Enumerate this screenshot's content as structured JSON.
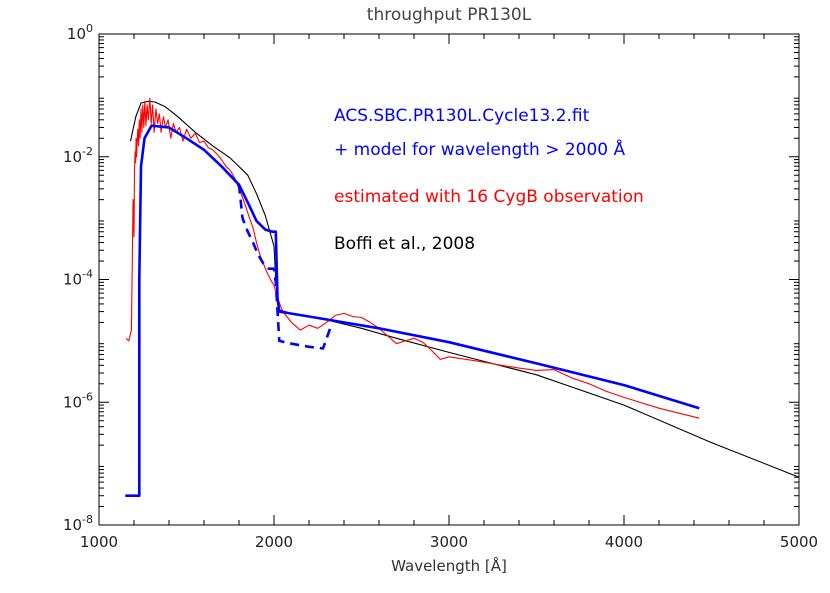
{
  "chart_data": {
    "type": "line",
    "title": "throughput PR130L",
    "xlabel": "Wavelength [Å]",
    "ylabel": "",
    "xlim": [
      1000,
      5000
    ],
    "ylim": [
      1e-08,
      1
    ],
    "y_scale": "log",
    "x_ticks": [
      {
        "value": 1000,
        "label": "1000"
      },
      {
        "value": 2000,
        "label": "2000"
      },
      {
        "value": 3000,
        "label": "3000"
      },
      {
        "value": 4000,
        "label": "4000"
      },
      {
        "value": 5000,
        "label": "5000"
      }
    ],
    "y_ticks": [
      {
        "value": 1e-08,
        "base": "10",
        "exp": "-8"
      },
      {
        "value": 1e-06,
        "base": "10",
        "exp": "-6"
      },
      {
        "value": 0.0001,
        "base": "10",
        "exp": "-4"
      },
      {
        "value": 0.01,
        "base": "10",
        "exp": "-2"
      },
      {
        "value": 1,
        "base": "10",
        "exp": "0"
      }
    ],
    "legend_placement": "upper-right inside plot",
    "annotations": [
      {
        "text": "ACS.SBC.PR130L.Cycle13.2.fit",
        "color": "#0000ff"
      },
      {
        "text": "+ model for wavelength > 2000 Å",
        "color": "#0000ff"
      },
      {
        "text": "estimated with 16 CygB observation",
        "color": "#ff0000"
      },
      {
        "text": "Boffi et al., 2008",
        "color": "#000000"
      }
    ],
    "series": [
      {
        "color": "#000000",
        "style": "solid-thin",
        "x": [
          1180,
          1210,
          1240,
          1280,
          1320,
          1380,
          1450,
          1550,
          1650,
          1750,
          1850,
          1900,
          1950,
          2000,
          2010,
          2030,
          2100,
          2300,
          2500,
          2700,
          3000,
          3500,
          4000,
          4500,
          5000
        ],
        "y": [
          0.018,
          0.045,
          0.075,
          0.08,
          0.078,
          0.065,
          0.045,
          0.025,
          0.015,
          0.0095,
          0.005,
          0.0025,
          0.0011,
          0.00035,
          0.0001,
          3.2e-05,
          2.8e-05,
          2.2e-05,
          1.6e-05,
          1.1e-05,
          6.5e-06,
          2.8e-06,
          9e-07,
          2.2e-07,
          6e-08
        ]
      },
      {
        "color": "#ff0000",
        "style": "solid-thin",
        "x": [
          1155,
          1170,
          1185,
          1190,
          1195,
          1200,
          1203,
          1206,
          1209,
          1212,
          1215,
          1218,
          1222,
          1226,
          1230,
          1235,
          1240,
          1245,
          1250,
          1256,
          1262,
          1268,
          1275,
          1282,
          1290,
          1298,
          1306,
          1315,
          1325,
          1335,
          1345,
          1355,
          1368,
          1380,
          1395,
          1410,
          1425,
          1440,
          1460,
          1480,
          1500,
          1525,
          1550,
          1575,
          1600,
          1625,
          1650,
          1675,
          1700,
          1725,
          1750,
          1775,
          1800,
          1820,
          1840,
          1860,
          1880,
          1900,
          1920,
          1940,
          1960,
          1980,
          2000,
          2020,
          2050,
          2100,
          2150,
          2200,
          2250,
          2300,
          2350,
          2400,
          2450,
          2500,
          2550,
          2600,
          2650,
          2700,
          2750,
          2800,
          2850,
          2900,
          2950,
          3000,
          3100,
          3200,
          3300,
          3400,
          3500,
          3600,
          3700,
          3800,
          3900,
          4000,
          4200,
          4430
        ],
        "y": [
          1.1e-05,
          1e-05,
          1.5e-05,
          0.0002,
          0.002,
          0.0005,
          0.006,
          0.012,
          0.008,
          0.02,
          0.01,
          0.018,
          0.028,
          0.015,
          0.04,
          0.02,
          0.06,
          0.025,
          0.07,
          0.03,
          0.08,
          0.032,
          0.07,
          0.04,
          0.09,
          0.035,
          0.07,
          0.025,
          0.06,
          0.035,
          0.05,
          0.025,
          0.045,
          0.03,
          0.04,
          0.02,
          0.035,
          0.025,
          0.03,
          0.018,
          0.028,
          0.02,
          0.024,
          0.017,
          0.018,
          0.014,
          0.013,
          0.011,
          0.009,
          0.007,
          0.006,
          0.0045,
          0.003,
          0.0022,
          0.0015,
          0.001,
          0.0007,
          0.0004,
          0.00025,
          0.00018,
          0.00013,
          0.0001,
          8e-05,
          5e-05,
          3e-05,
          2e-05,
          1.5e-05,
          1.8e-05,
          1.6e-05,
          2e-05,
          2.6e-05,
          2.8e-05,
          2.5e-05,
          2.4e-05,
          2e-05,
          1.6e-05,
          1.2e-05,
          9e-06,
          1e-05,
          1.1e-05,
          9.5e-06,
          7e-06,
          5e-06,
          5.5e-06,
          5e-06,
          4.5e-06,
          4e-06,
          3.6e-06,
          3.3e-06,
          3.4e-06,
          2.5e-06,
          2e-06,
          1.5e-06,
          1.2e-06,
          8e-07,
          5.5e-07
        ]
      },
      {
        "color": "#0000ff",
        "style": "solid-thick",
        "x": [
          1150,
          1230,
          1230,
          1240,
          1260,
          1300,
          1400,
          1500,
          1600,
          1700,
          1800,
          1850,
          1900,
          1950,
          1990,
          2000,
          2010,
          2020,
          2030,
          2200,
          2600,
          3000,
          3500,
          4000,
          4430
        ],
        "y": [
          3e-08,
          3e-08,
          0.0001,
          0.007,
          0.02,
          0.032,
          0.03,
          0.02,
          0.013,
          0.007,
          0.0035,
          0.0018,
          0.0009,
          0.00065,
          0.0006,
          0.0006,
          0.0006,
          5e-05,
          3e-05,
          2.5e-05,
          1.6e-05,
          9.5e-06,
          4.3e-06,
          1.9e-06,
          8e-07
        ]
      },
      {
        "color": "#0000ff",
        "style": "dashed-thick",
        "x": [
          1800,
          1820,
          1850,
          1880,
          1910,
          1940,
          1970,
          2000,
          2010,
          2030,
          2100,
          2200,
          2280,
          2330
        ],
        "y": [
          0.0035,
          0.001,
          0.0006,
          0.0004,
          0.00025,
          0.00018,
          0.00015,
          0.00015,
          9e-05,
          1e-05,
          9e-06,
          8e-06,
          7.5e-06,
          1.9e-05
        ]
      }
    ]
  }
}
